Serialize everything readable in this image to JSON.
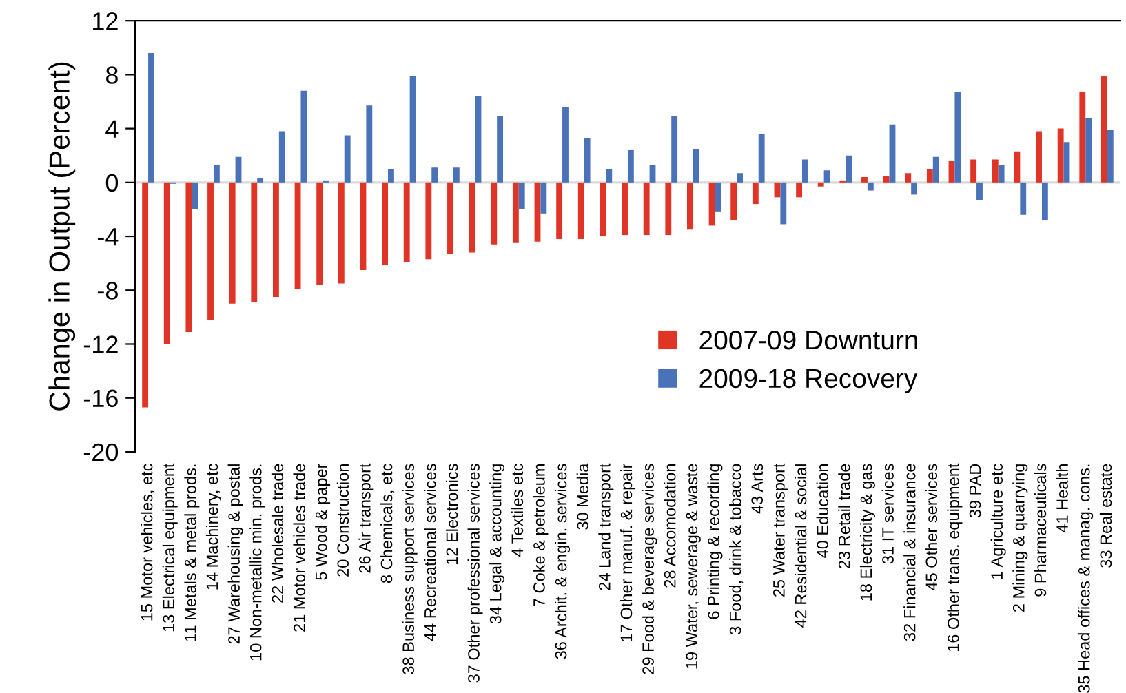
{
  "chart_data": {
    "type": "bar",
    "ylabel": "Change in Output (Percent)",
    "categories": [
      "15 Motor vehicles, etc",
      "13 Electrical equipment",
      "11 Metals & metal prods.",
      "14 Machinery, etc",
      "27 Warehousing & postal",
      "10 Non-metallic min. prods.",
      "22 Wholesale trade",
      "21 Motor vehicles trade",
      "5 Wood & paper",
      "20 Construction",
      "26 Air transport",
      "8 Chemicals, etc",
      "38 Business support services",
      "44 Recreational services",
      "12 Electronics",
      "37 Other professional services",
      "34 Legal & accounting",
      "4 Textiles etc",
      "7 Coke & petroleum",
      "36 Archit. & engin. services",
      "30 Media",
      "24 Land transport",
      "17 Other manuf. & repair",
      "29 Food & beverage services",
      "28 Accomodation",
      "19 Water, sewerage & waste",
      "6 Printing & recording",
      "3 Food, drink & tobacco",
      "43 Arts",
      "25 Water transport",
      "42 Residential & social",
      "40 Education",
      "23 Retail trade",
      "18 Electricity & gas",
      "31 IT services",
      "32 Financial & insurance",
      "45 Other services",
      "16 Other trans. equipment",
      "39 PAD",
      "1 Agriculture etc",
      "2 Mining & quarrying",
      "9 Pharmaceuticals",
      "41 Health",
      "35 Head offices & manag. cons.",
      "33 Real estate"
    ],
    "series": [
      {
        "name": "2007-09 Downturn",
        "color": "#e03426",
        "values": [
          -16.7,
          -12.0,
          -11.1,
          -10.2,
          -9.0,
          -8.9,
          -8.5,
          -7.9,
          -7.6,
          -7.5,
          -6.5,
          -6.1,
          -5.9,
          -5.7,
          -5.3,
          -5.2,
          -4.6,
          -4.5,
          -4.4,
          -4.2,
          -4.2,
          -4.0,
          -3.9,
          -3.9,
          -3.9,
          -3.5,
          -3.2,
          -2.8,
          -1.6,
          -1.1,
          -1.1,
          -0.3,
          0.1,
          0.4,
          0.5,
          0.7,
          1.0,
          1.6,
          1.7,
          1.7,
          2.3,
          3.8,
          4.0,
          6.7,
          7.9
        ]
      },
      {
        "name": "2009-18 Recovery",
        "color": "#4a72b8",
        "values": [
          9.6,
          -0.1,
          -2.0,
          1.3,
          1.9,
          0.3,
          3.8,
          6.8,
          0.1,
          3.5,
          5.7,
          1.0,
          7.9,
          1.1,
          1.1,
          6.4,
          4.9,
          -2.0,
          -2.3,
          5.6,
          3.3,
          1.0,
          2.4,
          1.3,
          4.9,
          2.5,
          -2.2,
          0.7,
          3.6,
          -3.1,
          1.7,
          0.9,
          2.0,
          -0.6,
          4.3,
          -0.9,
          1.9,
          6.7,
          -1.3,
          1.3,
          -2.4,
          -2.8,
          3.0,
          4.8,
          3.9
        ]
      }
    ],
    "ylim": [
      -20,
      12
    ],
    "yticks": [
      -20,
      -16,
      -12,
      -8,
      -4,
      0,
      4,
      8,
      12
    ],
    "legend": "lower right"
  }
}
